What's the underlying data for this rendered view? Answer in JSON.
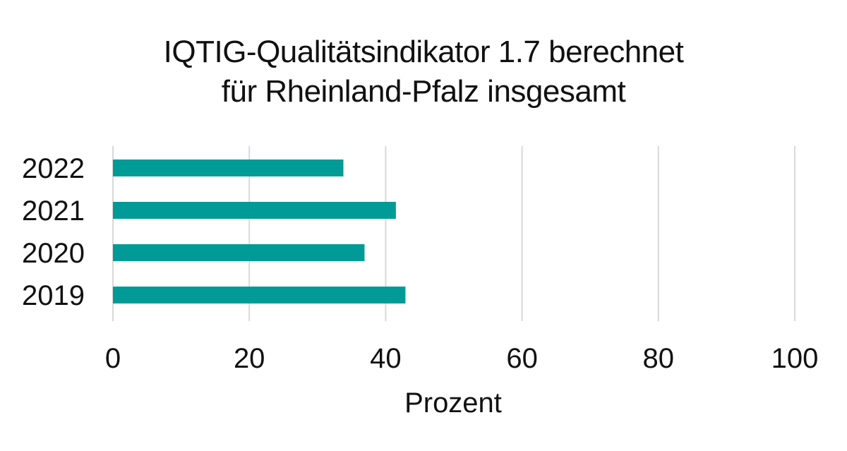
{
  "chart_data": {
    "type": "bar",
    "orientation": "horizontal",
    "title_lines": [
      "IQTIG-Qualitätsindikator 1.7 berechnet",
      "für Rheinland-Pfalz insgesamt"
    ],
    "categories": [
      "2022",
      "2021",
      "2020",
      "2019"
    ],
    "values": [
      33.8,
      41.5,
      36.9,
      42.9
    ],
    "xlabel": "Prozent",
    "ylabel": "",
    "xlim": [
      0,
      100
    ],
    "xticks": [
      "0",
      "20",
      "40",
      "60",
      "80",
      "100"
    ],
    "grid": "vertical",
    "legend": "none",
    "colors": {
      "bar": "#009b96",
      "grid": "#d9d9d9"
    }
  }
}
